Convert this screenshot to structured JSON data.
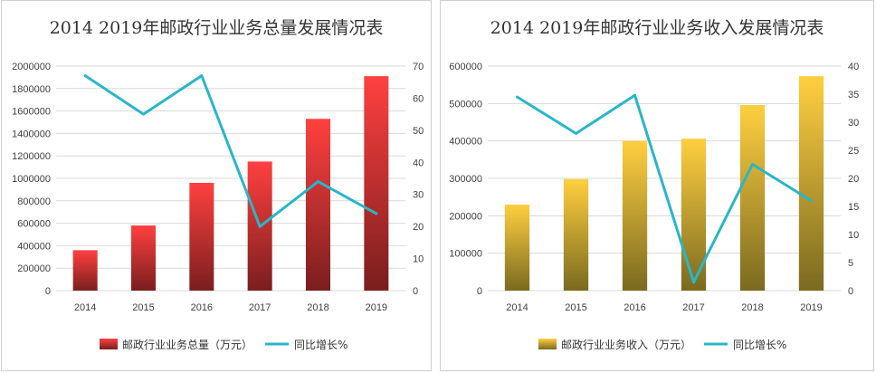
{
  "chart_data": [
    {
      "type": "bar",
      "title": "2014 2019年邮政行业业务总量发展情况表",
      "categories": [
        "2014",
        "2015",
        "2016",
        "2017",
        "2018",
        "2019"
      ],
      "series": [
        {
          "name": "邮政行业业务总量（万元）",
          "type": "bar",
          "axis": "left",
          "values": [
            360000,
            580000,
            960000,
            1150000,
            1530000,
            1910000
          ]
        },
        {
          "name": "同比增长%",
          "type": "line",
          "axis": "right",
          "values": [
            67,
            55,
            67,
            20,
            34,
            24
          ]
        }
      ],
      "ylim": [
        0,
        2000000
      ],
      "y_ticks": [
        "0",
        "200000",
        "400000",
        "600000",
        "800000",
        "1000000",
        "1200000",
        "1400000",
        "1600000",
        "1800000",
        "2000000"
      ],
      "y2lim": [
        0,
        70
      ],
      "y2_ticks": [
        "0",
        "10",
        "20",
        "30",
        "40",
        "50",
        "60",
        "70"
      ],
      "grid": true,
      "legend": "bottom",
      "colors": {
        "bar_top": "#ff4040",
        "bar_bottom": "#7a1e1e",
        "line": "#29b6c8"
      }
    },
    {
      "type": "bar",
      "title": "2014 2019年邮政行业业务收入发展情况表",
      "categories": [
        "2014",
        "2015",
        "2016",
        "2017",
        "2018",
        "2019"
      ],
      "series": [
        {
          "name": "邮政行业业务收入（万元）",
          "type": "bar",
          "axis": "left",
          "values": [
            230000,
            298000,
            400000,
            406000,
            496000,
            573000
          ]
        },
        {
          "name": "同比增长%",
          "type": "line",
          "axis": "right",
          "values": [
            34.5,
            28,
            34.8,
            1.5,
            22.5,
            16
          ]
        }
      ],
      "ylim": [
        0,
        600000
      ],
      "y_ticks": [
        "0",
        "100000",
        "200000",
        "300000",
        "400000",
        "500000",
        "600000"
      ],
      "y2lim": [
        0,
        40
      ],
      "y2_ticks": [
        "0",
        "5",
        "10",
        "15",
        "20",
        "25",
        "30",
        "35",
        "40"
      ],
      "grid": true,
      "legend": "bottom",
      "colors": {
        "bar_top": "#ffcf40",
        "bar_bottom": "#7a6a20",
        "line": "#29b6c8"
      }
    }
  ]
}
